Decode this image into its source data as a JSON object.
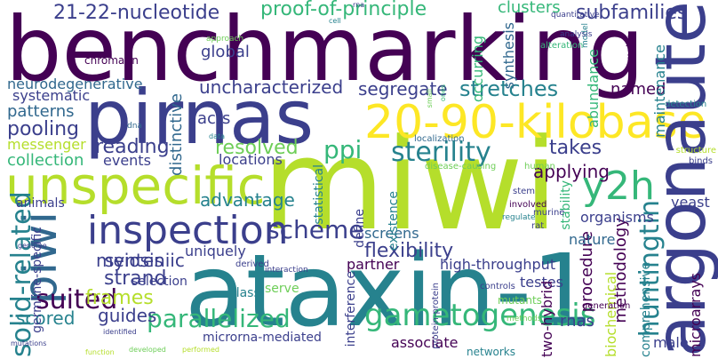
{
  "palette": {
    "deep_purple": "#440154",
    "indigo": "#3b3f8c",
    "blue": "#31688e",
    "teal": "#26828e",
    "sea_green": "#1f9e89",
    "green": "#35b779",
    "lime": "#6ece58",
    "yellow_green": "#b5de2b",
    "yellow": "#fde725"
  },
  "words": [
    {
      "text": "benchmarking",
      "color": "deep_purple"
    },
    {
      "text": "miwi",
      "color": "yellow_green"
    },
    {
      "text": "ataxin-1",
      "color": "teal"
    },
    {
      "text": "pirnas",
      "color": "indigo"
    },
    {
      "text": "20-90-kilobase",
      "color": "yellow"
    },
    {
      "text": "unspecific",
      "color": "yellow_green"
    },
    {
      "text": "argonaute",
      "color": "indigo"
    },
    {
      "text": "inspection",
      "color": "indigo"
    },
    {
      "text": "piwi",
      "color": "blue"
    },
    {
      "text": "sterility",
      "color": "teal"
    },
    {
      "text": "y2h",
      "color": "green"
    },
    {
      "text": "gametogenesis",
      "color": "green"
    },
    {
      "text": "huntingtin",
      "color": "teal"
    },
    {
      "text": "parallelized",
      "color": "green"
    },
    {
      "text": "scheme",
      "color": "indigo"
    },
    {
      "text": "suited",
      "color": "deep_purple"
    },
    {
      "text": "solid-related",
      "color": "teal"
    },
    {
      "text": "stretches",
      "color": "teal"
    },
    {
      "text": "21-22-nucleotide",
      "color": "indigo"
    },
    {
      "text": "proof-of-principle",
      "color": "green"
    },
    {
      "text": "subfamilies",
      "color": "indigo"
    },
    {
      "text": "ppi",
      "color": "green"
    },
    {
      "text": "flexibility",
      "color": "indigo"
    },
    {
      "text": "meiosis",
      "color": "indigo"
    },
    {
      "text": "uncharacterized",
      "color": "indigo"
    },
    {
      "text": "segregate",
      "color": "indigo"
    },
    {
      "text": "resolved",
      "color": "lime"
    },
    {
      "text": "takes",
      "color": "indigo"
    },
    {
      "text": "applying",
      "color": "deep_purple"
    },
    {
      "text": "methodology",
      "color": "deep_purple"
    },
    {
      "text": "frames",
      "color": "yellow_green"
    },
    {
      "text": "strand",
      "color": "indigo"
    },
    {
      "text": "guides",
      "color": "indigo"
    },
    {
      "text": "scored",
      "color": "teal"
    },
    {
      "text": "synteniic",
      "color": "indigo"
    },
    {
      "text": "advantage",
      "color": "teal"
    },
    {
      "text": "pooling",
      "color": "indigo"
    },
    {
      "text": "reading",
      "color": "indigo"
    },
    {
      "text": "clusters",
      "color": "green"
    },
    {
      "text": "neurodegenerative",
      "color": "blue"
    },
    {
      "text": "global",
      "color": "indigo"
    },
    {
      "text": "systematic",
      "color": "indigo"
    },
    {
      "text": "patterns",
      "color": "blue"
    },
    {
      "text": "messenger",
      "color": "yellow_green"
    },
    {
      "text": "collection",
      "color": "green"
    },
    {
      "text": "events",
      "color": "indigo"
    },
    {
      "text": "locations",
      "color": "indigo"
    },
    {
      "text": "acts",
      "color": "indigo"
    },
    {
      "text": "distinctive",
      "color": "blue"
    },
    {
      "text": "named",
      "color": "deep_purple"
    },
    {
      "text": "abundance",
      "color": "green"
    },
    {
      "text": "occurring",
      "color": "green"
    },
    {
      "text": "synthesis",
      "color": "blue"
    },
    {
      "text": "maintenance",
      "color": "teal"
    },
    {
      "text": "procedure",
      "color": "deep_purple"
    },
    {
      "text": "high-throughput",
      "color": "indigo"
    },
    {
      "text": "nature",
      "color": "blue"
    },
    {
      "text": "organisms",
      "color": "indigo"
    },
    {
      "text": "yeast",
      "color": "indigo"
    },
    {
      "text": "uniquely",
      "color": "indigo"
    },
    {
      "text": "partner",
      "color": "deep_purple"
    },
    {
      "text": "screens",
      "color": "blue"
    },
    {
      "text": "testes",
      "color": "indigo"
    },
    {
      "text": "selection",
      "color": "indigo"
    },
    {
      "text": "class",
      "color": "teal"
    },
    {
      "text": "serve",
      "color": "lime"
    },
    {
      "text": "interference",
      "color": "indigo"
    },
    {
      "text": "microrna-mediated",
      "color": "indigo"
    },
    {
      "text": "associate",
      "color": "deep_purple"
    },
    {
      "text": "rnas",
      "color": "indigo"
    },
    {
      "text": "biochemical",
      "color": "yellow_green"
    },
    {
      "text": "two-hybrid",
      "color": "deep_purple"
    },
    {
      "text": "comprehensive",
      "color": "teal"
    },
    {
      "text": "microarrays",
      "color": "deep_purple"
    },
    {
      "text": "male",
      "color": "indigo"
    },
    {
      "text": "existence",
      "color": "teal"
    },
    {
      "text": "statistical",
      "color": "teal"
    },
    {
      "text": "define",
      "color": "indigo"
    },
    {
      "text": "germline-specific",
      "color": "indigo"
    },
    {
      "text": "animals",
      "color": "indigo"
    },
    {
      "text": "stability",
      "color": "green"
    },
    {
      "text": "mutants",
      "color": "lime"
    },
    {
      "text": "networks",
      "color": "teal"
    },
    {
      "text": "generation",
      "color": "deep_purple"
    },
    {
      "text": "protein-protein",
      "color": "indigo"
    },
    {
      "text": "controls",
      "color": "indigo"
    },
    {
      "text": "methods",
      "color": "lime"
    },
    {
      "text": "derived",
      "color": "indigo"
    },
    {
      "text": "interaction",
      "color": "indigo"
    },
    {
      "text": "mutations",
      "color": "indigo"
    },
    {
      "text": "identified",
      "color": "indigo"
    },
    {
      "text": "genome",
      "color": "indigo"
    },
    {
      "text": "function",
      "color": "yellow_green"
    },
    {
      "text": "developed",
      "color": "lime"
    },
    {
      "text": "performed",
      "color": "yellow_green"
    },
    {
      "text": "chromatin",
      "color": "deep_purple"
    },
    {
      "text": "approach",
      "color": "lime"
    },
    {
      "text": "dna",
      "color": "blue"
    },
    {
      "text": "data",
      "color": "teal"
    },
    {
      "text": "localization",
      "color": "blue"
    },
    {
      "text": "disease-causing",
      "color": "lime"
    },
    {
      "text": "human",
      "color": "lime"
    },
    {
      "text": "involved",
      "color": "deep_purple"
    },
    {
      "text": "regulate",
      "color": "teal"
    },
    {
      "text": "murine",
      "color": "indigo"
    },
    {
      "text": "rat",
      "color": "indigo"
    },
    {
      "text": "stem",
      "color": "indigo"
    },
    {
      "text": "binds",
      "color": "indigo"
    },
    {
      "text": "structure",
      "color": "yellow_green"
    },
    {
      "text": "detection",
      "color": "teal"
    },
    {
      "text": "major",
      "color": "deep_purple"
    },
    {
      "text": "model",
      "color": "teal"
    },
    {
      "text": "quantitative",
      "color": "indigo"
    },
    {
      "text": "analysis",
      "color": "indigo"
    },
    {
      "text": "alteration",
      "color": "green"
    },
    {
      "text": "cell",
      "color": "teal"
    },
    {
      "text": "rna",
      "color": "indigo"
    },
    {
      "text": "small",
      "color": "lime"
    },
    {
      "text": "ones",
      "color": "green"
    }
  ]
}
